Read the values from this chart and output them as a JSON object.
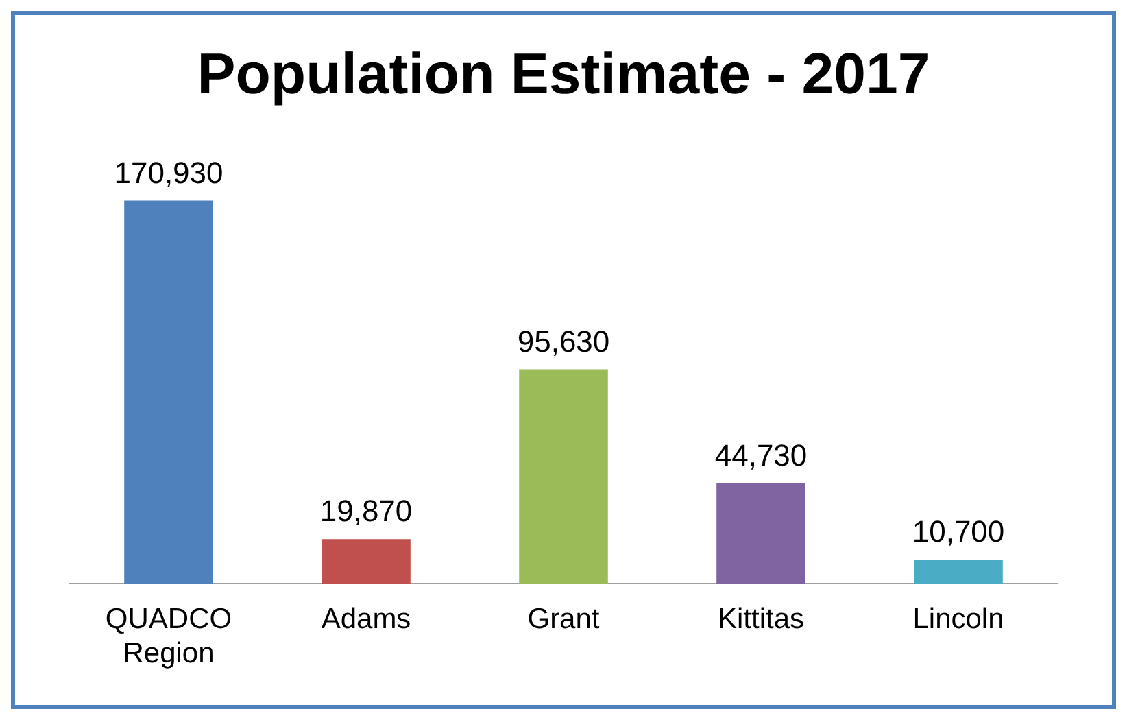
{
  "chart_data": {
    "type": "bar",
    "title": "Population Estimate - 2017",
    "categories": [
      "QUADCO Region",
      "Adams",
      "Grant",
      "Kittitas",
      "Lincoln"
    ],
    "values": [
      170930,
      19870,
      95630,
      44730,
      10700
    ],
    "colors": [
      "#4f81bd",
      "#c0504d",
      "#9bbb59",
      "#8064a2",
      "#4bacc6"
    ],
    "value_labels": [
      "170,930",
      "19,870",
      "95,630",
      "44,730",
      "10,700"
    ],
    "grid": false,
    "legend": false
  }
}
